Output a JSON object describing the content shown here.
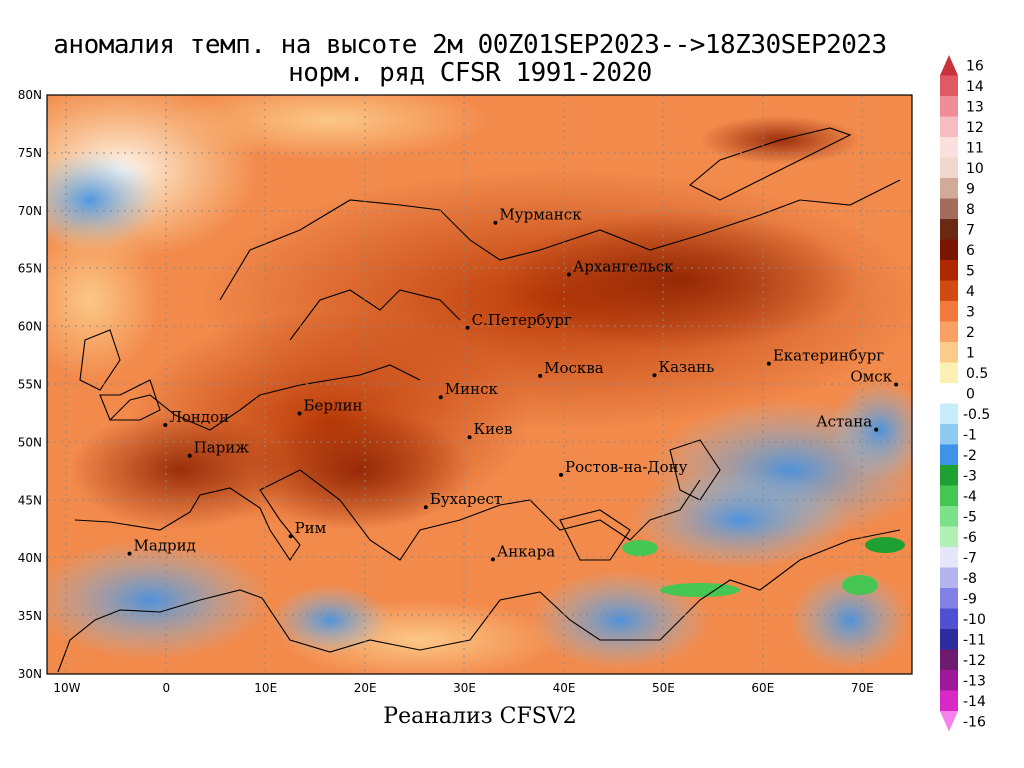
{
  "title": {
    "line1": "аномалия темп. на высоте 2м 00Z01SEP2023-->18Z30SEP2023",
    "line2": "норм. ряд CFSR 1991-2020"
  },
  "footer": "Реанализ CFSV2",
  "map": {
    "lon_range": [
      -12,
      75
    ],
    "lat_range": [
      30,
      80
    ],
    "lat_ticks": [
      "30N",
      "35N",
      "40N",
      "45N",
      "50N",
      "55N",
      "60N",
      "65N",
      "70N",
      "75N",
      "80N"
    ],
    "lon_ticks": [
      "10W",
      "0",
      "10E",
      "20E",
      "30E",
      "40E",
      "50E",
      "60E",
      "70E"
    ],
    "cities": [
      {
        "name": "Мурманск",
        "lon": 33.1,
        "lat": 68.97
      },
      {
        "name": "Архангельск",
        "lon": 40.5,
        "lat": 64.5
      },
      {
        "name": "С.Петербург",
        "lon": 30.3,
        "lat": 59.9
      },
      {
        "name": "Москва",
        "lon": 37.6,
        "lat": 55.75
      },
      {
        "name": "Казань",
        "lon": 49.1,
        "lat": 55.8
      },
      {
        "name": "Екатеринбург",
        "lon": 60.6,
        "lat": 56.8
      },
      {
        "name": "Омск",
        "lon": 73.4,
        "lat": 55.0
      },
      {
        "name": "Астана",
        "lon": 71.4,
        "lat": 51.1
      },
      {
        "name": "Минск",
        "lon": 27.6,
        "lat": 53.9
      },
      {
        "name": "Киев",
        "lon": 30.5,
        "lat": 50.45
      },
      {
        "name": "Берлин",
        "lon": 13.4,
        "lat": 52.5
      },
      {
        "name": "Лондон",
        "lon": -0.1,
        "lat": 51.5
      },
      {
        "name": "Париж",
        "lon": 2.35,
        "lat": 48.85
      },
      {
        "name": "Ростов-на-Дону",
        "lon": 39.7,
        "lat": 47.2
      },
      {
        "name": "Бухарест",
        "lon": 26.1,
        "lat": 44.4
      },
      {
        "name": "Рим",
        "lon": 12.5,
        "lat": 41.9
      },
      {
        "name": "Мадрид",
        "lon": -3.7,
        "lat": 40.4
      },
      {
        "name": "Анкара",
        "lon": 32.85,
        "lat": 39.9
      }
    ]
  },
  "colorbar": {
    "labels": [
      "16",
      "14",
      "13",
      "12",
      "11",
      "10",
      "9",
      "8",
      "7",
      "6",
      "5",
      "4",
      "3",
      "2",
      "1",
      "0.5",
      "0",
      "-0.5",
      "-1",
      "-2",
      "-3",
      "-4",
      "-5",
      "-6",
      "-7",
      "-8",
      "-9",
      "-10",
      "-11",
      "-12",
      "-13",
      "-14",
      "-16"
    ],
    "colors": [
      "#c8323c",
      "#e05a64",
      "#ef8e96",
      "#f7bcc0",
      "#fbe0de",
      "#f1d8cc",
      "#d2ab98",
      "#a26d5c",
      "#6b2812",
      "#7a1600",
      "#b02800",
      "#d24a10",
      "#ef7a3a",
      "#f9a063",
      "#fccb8a",
      "#fdf0b4",
      "#ffffff",
      "#c8ecfa",
      "#8ccaf2",
      "#3e92e8",
      "#1ea032",
      "#46c652",
      "#7ce28a",
      "#b2f0b6",
      "#e6e6fa",
      "#b4b4f0",
      "#8282e6",
      "#5050d2",
      "#2c2ca0",
      "#6e1a6e",
      "#a0189a",
      "#d828c8",
      "#f482ec"
    ]
  }
}
